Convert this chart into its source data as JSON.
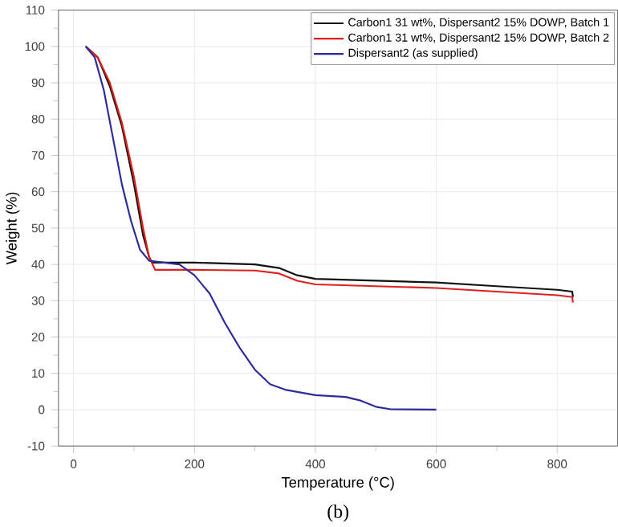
{
  "chart_data": {
    "type": "line",
    "xlabel": "Temperature (°C)",
    "ylabel": "Weight (%)",
    "xlim": [
      -25,
      900
    ],
    "ylim": [
      -10,
      110
    ],
    "xticks": [
      0,
      200,
      400,
      600,
      800
    ],
    "yticks": [
      -10,
      0,
      10,
      20,
      30,
      40,
      50,
      60,
      70,
      80,
      90,
      100,
      110
    ],
    "grid": true,
    "legend": "top right",
    "line_style": "solid",
    "annotations": [
      "(b)"
    ],
    "series": [
      {
        "name": "Carbon1 31 wt%, Dispersant2 15% DOWP, Batch 1",
        "color": "#111111",
        "x": [
          20,
          40,
          60,
          80,
          100,
          115,
          125,
          130,
          200,
          300,
          340,
          370,
          400,
          500,
          600,
          700,
          800,
          825,
          826
        ],
        "values": [
          100,
          97,
          89,
          78,
          62,
          48,
          42,
          40.5,
          40.5,
          40,
          39,
          37,
          36,
          35.5,
          35,
          34,
          33,
          32.5,
          31
        ]
      },
      {
        "name": "Carbon1 31 wt%, Dispersant2 15% DOWP, Batch 2",
        "color": "#e0201c",
        "x": [
          20,
          40,
          60,
          80,
          100,
          115,
          125,
          135,
          200,
          300,
          340,
          370,
          400,
          500,
          600,
          700,
          800,
          825,
          826
        ],
        "values": [
          100,
          97,
          90,
          79,
          64,
          50,
          42,
          38.5,
          38.5,
          38.3,
          37.5,
          35.5,
          34.5,
          34,
          33.5,
          32.5,
          31.5,
          31,
          29.5
        ]
      },
      {
        "name": "Dispersant2 (as supplied)",
        "color": "#2b2b9b",
        "x": [
          20,
          35,
          50,
          65,
          80,
          95,
          110,
          125,
          150,
          175,
          200,
          225,
          250,
          275,
          300,
          325,
          350,
          400,
          450,
          475,
          500,
          525,
          600
        ],
        "values": [
          100,
          97,
          88,
          75,
          62,
          52,
          44,
          41,
          40.5,
          40,
          37,
          32,
          24,
          17,
          11,
          7,
          5.5,
          4,
          3.5,
          2.5,
          0.8,
          0.1,
          0
        ]
      }
    ]
  }
}
